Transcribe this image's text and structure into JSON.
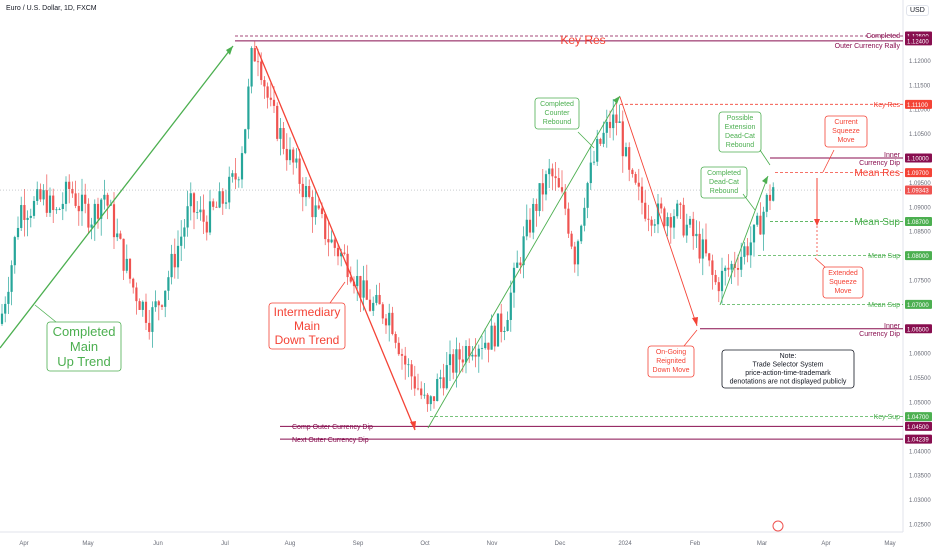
{
  "header": {
    "title": "Euro / U.S. Dollar, 1D, FXCM",
    "currency": "USD"
  },
  "chart_data": {
    "type": "candlestick",
    "symbol": "Euro / U.S. Dollar, 1D, FXCM",
    "ylim": [
      1.0246,
      1.1285
    ],
    "y_ticks": [
      "1.12500",
      "1.12000",
      "1.11500",
      "1.11000",
      "1.10500",
      "1.10000",
      "1.09500",
      "1.09000",
      "1.08500",
      "1.08000",
      "1.07500",
      "1.07000",
      "1.06500",
      "1.06000",
      "1.05500",
      "1.05000",
      "1.04500",
      "1.04000",
      "1.03500",
      "1.03000",
      "1.02500"
    ],
    "x_ticks": [
      "Apr",
      "May",
      "Jun",
      "Jul",
      "Aug",
      "Sep",
      "Oct",
      "Nov",
      "Dec",
      "2024",
      "Feb",
      "Mar",
      "Apr",
      "May"
    ],
    "current_price": "1.09343",
    "levels": [
      {
        "price": 1.125,
        "label": "1.12500",
        "name": "Completed",
        "color": "#880e4f",
        "style": "dash"
      },
      {
        "price": 1.124,
        "label": "1.12400",
        "name": "Outer Currency Rally",
        "color": "#880e4f",
        "style": "solid"
      },
      {
        "price": 1.111,
        "label": "1.11100",
        "name": "Key Res",
        "color": "#f44336",
        "style": "dash"
      },
      {
        "price": 1.1,
        "label": "1.10000",
        "name": "Inner Currency Dip",
        "color": "#880e4f",
        "style": "solid"
      },
      {
        "price": 1.097,
        "label": "1.09700",
        "name": "Mean Res",
        "color": "#f44336",
        "style": "dash"
      },
      {
        "price": 1.087,
        "label": "1.08700",
        "name": "Mean Sup",
        "color": "#4caf50",
        "style": "dash"
      },
      {
        "price": 1.08,
        "label": "1.08000",
        "name": "Mean Sup",
        "color": "#4caf50",
        "style": "dash"
      },
      {
        "price": 1.07,
        "label": "1.07000",
        "name": "Mean Sup",
        "color": "#4caf50",
        "style": "dash"
      },
      {
        "price": 1.065,
        "label": "1.06500",
        "name": "Inner Currency Dip",
        "color": "#880e4f",
        "style": "solid"
      },
      {
        "price": 1.047,
        "label": "1.04700",
        "name": "Key Sup",
        "color": "#4caf50",
        "style": "dash"
      },
      {
        "price": 1.045,
        "label": "1.04500",
        "name": "Comp Outer Currency Dip",
        "color": "#880e4f",
        "style": "solid"
      },
      {
        "price": 1.04239,
        "label": "1.04239",
        "name": "Next Outer Currency Dip",
        "color": "#880e4f",
        "style": "solid"
      }
    ],
    "annotations": {
      "key_res_big": "Key Res",
      "completed_main_up": [
        "Completed",
        "Main",
        "Up Trend"
      ],
      "intermediary_down": [
        "Intermediary",
        "Main",
        "Down Trend"
      ],
      "completed_counter": [
        "Completed",
        "Counter",
        "Rebound"
      ],
      "possible_extension": [
        "Possible",
        "Extension",
        "Dead-Cat",
        "Rebound"
      ],
      "completed_deadcat": [
        "Completed",
        "Dead-Cat",
        "Rebound"
      ],
      "current_squeeze": [
        "Current",
        "Squeeze",
        "Move"
      ],
      "extended_squeeze": [
        "Extended",
        "Squeeze",
        "Move"
      ],
      "ongoing": [
        "On-Going",
        "Reignited",
        "Down Move"
      ],
      "note": [
        "Note:",
        "Trade Selector System",
        "price-action-time-trademark",
        "denotations are not displayed publicly"
      ]
    },
    "colors": {
      "up": "#26a69a",
      "down": "#ef5350",
      "green": "#4caf50",
      "red": "#f44336",
      "maroon": "#880e4f"
    }
  }
}
